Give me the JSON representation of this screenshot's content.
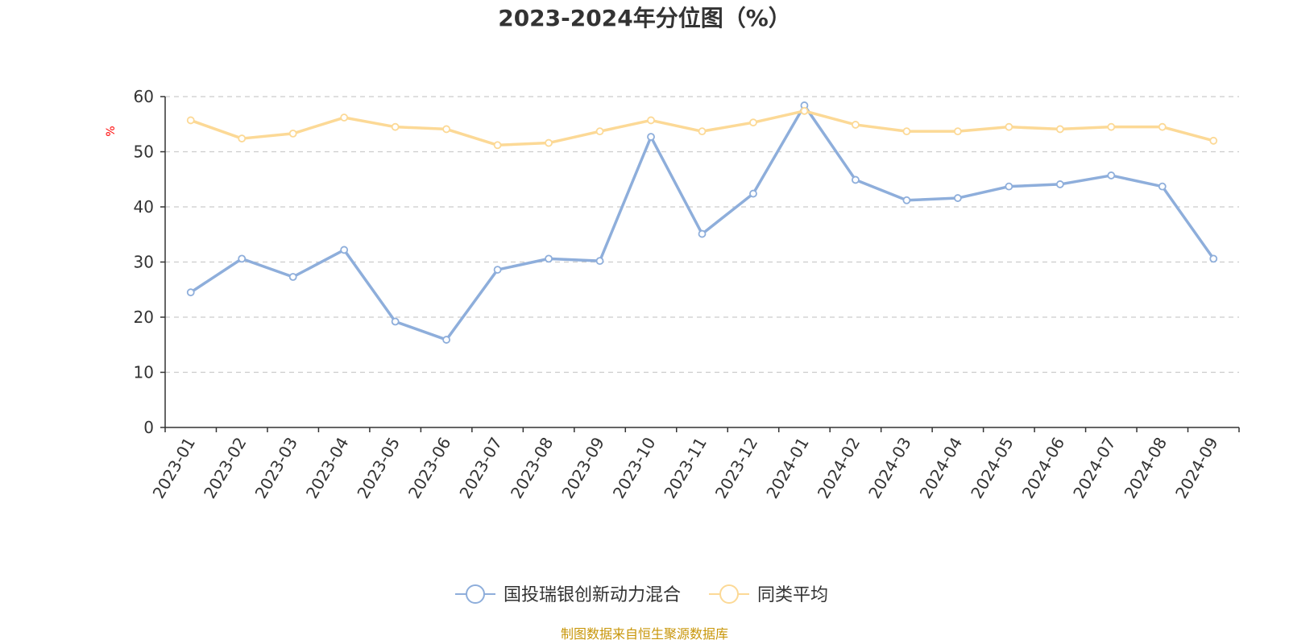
{
  "chart_data": {
    "type": "line",
    "title": "2023-2024年分位图（%）",
    "ylabel": "%",
    "xlabel": "",
    "ylim": [
      0,
      60
    ],
    "yticks": [
      0,
      10,
      20,
      30,
      40,
      50,
      60
    ],
    "grid": true,
    "legend_position": "bottom",
    "categories": [
      "2023-01",
      "2023-02",
      "2023-03",
      "2023-04",
      "2023-05",
      "2023-06",
      "2023-07",
      "2023-08",
      "2023-09",
      "2023-10",
      "2023-11",
      "2023-12",
      "2024-01",
      "2024-02",
      "2024-03",
      "2024-04",
      "2024-05",
      "2024-06",
      "2024-07",
      "2024-08",
      "2024-09"
    ],
    "series": [
      {
        "name": "国投瑞银创新动力混合",
        "color": "#8eaedb",
        "values": [
          24.5,
          30.6,
          27.3,
          32.2,
          19.2,
          15.9,
          28.6,
          30.6,
          30.2,
          52.7,
          35.1,
          42.4,
          58.4,
          44.9,
          41.2,
          41.6,
          43.7,
          44.1,
          45.7,
          43.7,
          30.6
        ]
      },
      {
        "name": "同类平均",
        "color": "#fcd996",
        "values": [
          55.7,
          52.4,
          53.3,
          56.2,
          54.5,
          54.1,
          51.2,
          51.6,
          53.7,
          55.7,
          53.7,
          55.3,
          57.4,
          54.9,
          53.7,
          53.7,
          54.5,
          54.1,
          54.5,
          54.5,
          52.0
        ]
      }
    ],
    "source": "制图数据来自恒生聚源数据库",
    "ylabel_color": "#ff0000",
    "source_color": "#c8960a"
  }
}
